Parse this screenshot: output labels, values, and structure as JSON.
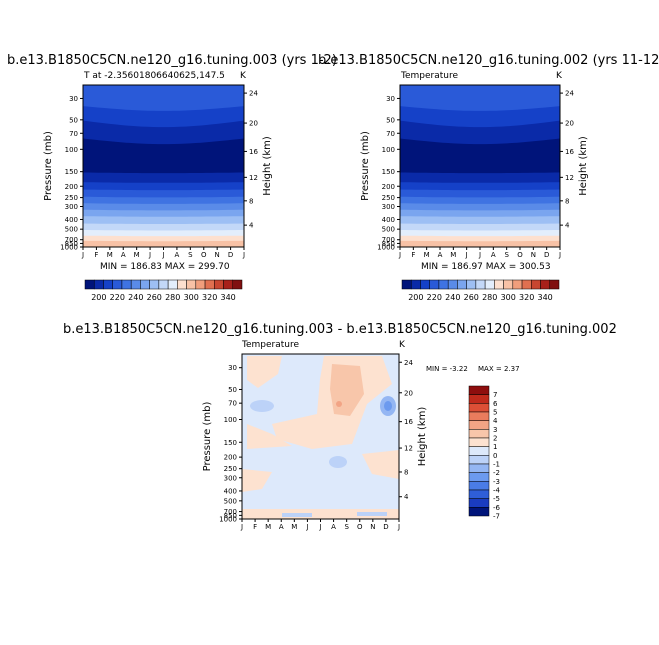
{
  "chart_data": [
    {
      "type": "heatmap",
      "title": "b.e13.B1850C5CN.ne120_g16.tuning.003 (yrs 1-2)",
      "subtitle_left": "T at -2.35601806640625,147.5",
      "subtitle_right": "K",
      "ylabel": "Pressure (mb)",
      "ylabel_right": "Height (km)",
      "x_ticks": [
        "J",
        "F",
        "M",
        "A",
        "M",
        "J",
        "J",
        "A",
        "S",
        "O",
        "N",
        "D",
        "J"
      ],
      "y_ticks": [
        "30",
        "50",
        "70",
        "100",
        "150",
        "200",
        "250",
        "300",
        "400",
        "500",
        "700",
        "850",
        "1000"
      ],
      "y_right_ticks": [
        "24",
        "20",
        "16",
        "12",
        "8",
        "4"
      ],
      "stats": "MIN = 186.83 MAX = 299.70",
      "colorbar_labels": [
        "200",
        "220",
        "240",
        "260",
        "280",
        "300",
        "320",
        "340"
      ]
    },
    {
      "type": "heatmap",
      "title": "b.e13.B1850C5CN.ne120_g16.tuning.002 (yrs 11-12",
      "subtitle_left": "Temperature",
      "subtitle_right": "K",
      "ylabel": "Pressure (mb)",
      "ylabel_right": "Height (km)",
      "x_ticks": [
        "J",
        "F",
        "M",
        "A",
        "M",
        "J",
        "J",
        "A",
        "S",
        "O",
        "N",
        "D",
        "J"
      ],
      "y_ticks": [
        "30",
        "50",
        "70",
        "100",
        "150",
        "200",
        "250",
        "300",
        "400",
        "500",
        "700",
        "850",
        "1000"
      ],
      "y_right_ticks": [
        "24",
        "20",
        "16",
        "12",
        "8",
        "4"
      ],
      "stats": "MIN = 186.97 MAX = 300.53",
      "colorbar_labels": [
        "200",
        "220",
        "240",
        "260",
        "280",
        "300",
        "320",
        "340"
      ]
    },
    {
      "type": "heatmap",
      "title": "b.e13.B1850C5CN.ne120_g16.tuning.003 - b.e13.B1850C5CN.ne120_g16.tuning.002",
      "subtitle_left": "Temperature",
      "subtitle_right": "K",
      "ylabel": "Pressure (mb)",
      "ylabel_right": "Height (km)",
      "x_ticks": [
        "J",
        "F",
        "M",
        "A",
        "M",
        "J",
        "J",
        "A",
        "S",
        "O",
        "N",
        "D",
        "J"
      ],
      "y_ticks": [
        "30",
        "50",
        "70",
        "100",
        "150",
        "200",
        "250",
        "300",
        "400",
        "500",
        "700",
        "850",
        "1000"
      ],
      "y_right_ticks": [
        "24",
        "20",
        "16",
        "12",
        "8",
        "4"
      ],
      "stats_min": "MIN = -3.22",
      "stats_max": "MAX = 2.37",
      "colorbar_labels": [
        "7",
        "6",
        "5",
        "4",
        "3",
        "2",
        "1",
        "0",
        "-1",
        "-2",
        "-3",
        "-4",
        "-5",
        "-6",
        "-7"
      ]
    }
  ],
  "colors": {
    "temp_scale": [
      "#00147a",
      "#0a2aa8",
      "#1541c8",
      "#2a5ad8",
      "#3f73e2",
      "#5a8be8",
      "#7aa5ef",
      "#9dbff4",
      "#c3d8f8",
      "#e3eefc",
      "#fde0cf",
      "#f8c2a6",
      "#f09e7c",
      "#e07050",
      "#c84630",
      "#a8201a",
      "#801010"
    ],
    "diff_scale": [
      "#00147a",
      "#1a3cc0",
      "#2f5ed8",
      "#4a7ce6",
      "#6c9aef",
      "#94b6f3",
      "#bcd2f8",
      "#dde9fb",
      "#fde2d0",
      "#f8c6aa",
      "#f2a485",
      "#ea7c5d",
      "#dc4f36",
      "#c02a1c",
      "#8e0e0e"
    ]
  }
}
